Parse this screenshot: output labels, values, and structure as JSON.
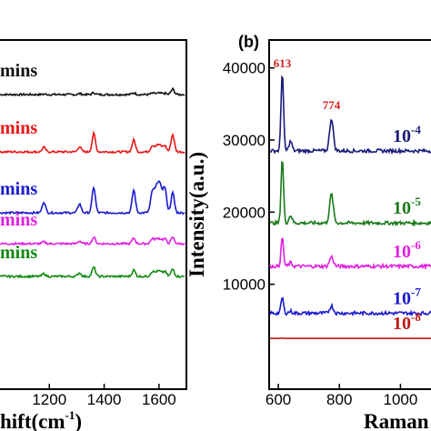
{
  "colors": {
    "black": "#111111",
    "red": "#e81616",
    "blue": "#1a1ad0",
    "magenta": "#e020e0",
    "green": "#128a12",
    "navy": "#1a1a7a",
    "darkgreen": "#1a7a1a",
    "darkred": "#c01818",
    "peak_label": "#d42020"
  },
  "chart_data": [
    {
      "type": "line",
      "panel": "a",
      "xlabel": "hift(cm",
      "xlabel_sup": "-1",
      "xlabel_end": ")",
      "ylabel": "",
      "xlim": [
        1020,
        1700
      ],
      "xticks": [
        1200,
        1400,
        1600
      ],
      "xtick_labels": [
        "1200",
        "1400",
        "1600"
      ],
      "yticks_shown": false,
      "peaks": [
        1180,
        1310,
        1362,
        1508,
        1575,
        1598,
        1622,
        1650
      ],
      "series": [
        {
          "name": "mins",
          "color_key": "black",
          "baseline_offset": 4,
          "peak_heights": [
            0.5,
            1,
            2,
            2,
            1,
            1.5,
            1,
            6
          ]
        },
        {
          "name": "mins",
          "color_key": "red",
          "baseline_offset": 3,
          "peak_heights": [
            5,
            6,
            20,
            13,
            5,
            8,
            5,
            19
          ]
        },
        {
          "name": "mins",
          "color_key": "blue",
          "baseline_offset": 2,
          "peak_heights": [
            12,
            10,
            28,
            25,
            15,
            35,
            20,
            22
          ]
        },
        {
          "name": "mins",
          "color_key": "magenta",
          "baseline_offset": 1,
          "peak_heights": [
            2,
            3,
            7,
            6,
            4,
            6,
            4,
            7
          ]
        },
        {
          "name": "mins",
          "color_key": "green",
          "baseline_offset": 0,
          "peak_heights": [
            3,
            4,
            10,
            7,
            4,
            6,
            4,
            8
          ]
        }
      ]
    },
    {
      "type": "line",
      "panel": "b",
      "panel_label": "(b)",
      "xlabel": "Raman",
      "ylabel": "Intensity(a.u.)",
      "xlim": [
        570,
        1100
      ],
      "ylim": [
        0,
        45000
      ],
      "xticks": [
        600,
        800,
        1000
      ],
      "xtick_labels": [
        "600",
        "800",
        "1000"
      ],
      "yticks": [
        10000,
        20000,
        30000,
        40000
      ],
      "ytick_labels": [
        "10000",
        "20000",
        "30000",
        "40000"
      ],
      "peak_annotations": [
        {
          "label": "613",
          "x": 613
        },
        {
          "label": "774",
          "x": 774
        }
      ],
      "series": [
        {
          "name": "10",
          "exponent": "-4",
          "color_key": "navy",
          "baseline": 28500,
          "peak_613": 39500,
          "peak_774": 33000
        },
        {
          "name": "10",
          "exponent": "-5",
          "color_key": "darkgreen",
          "baseline": 18500,
          "peak_613": 27500,
          "peak_774": 22500
        },
        {
          "name": "10",
          "exponent": "-6",
          "color_key": "magenta",
          "baseline": 12500,
          "peak_613": 16500,
          "peak_774": 13800
        },
        {
          "name": "10",
          "exponent": "-7",
          "color_key": "blue",
          "baseline": 6000,
          "peak_613": 8200,
          "peak_774": 7000
        },
        {
          "name": "10",
          "exponent": "-8",
          "color_key": "darkred",
          "baseline": 2500,
          "peak_613": 2550,
          "peak_774": 2500
        }
      ]
    }
  ]
}
